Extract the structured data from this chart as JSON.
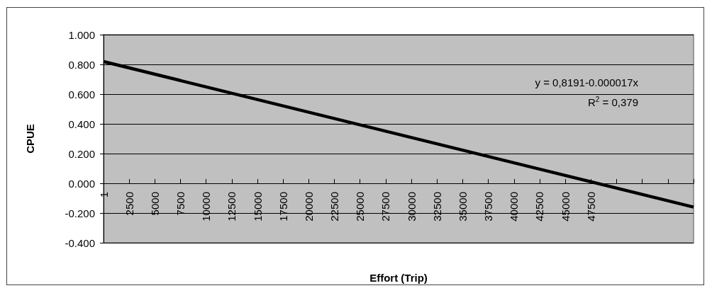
{
  "chart_data": {
    "type": "line",
    "xlabel": "Effort (Trip)",
    "ylabel": "CPUE",
    "x": [
      1,
      57500
    ],
    "series": [
      {
        "color": "#000000",
        "values": [
          0.819,
          -0.16
        ]
      }
    ],
    "xlim": [
      1,
      57500
    ],
    "xticks": [
      1,
      2500,
      5000,
      7500,
      10000,
      12500,
      15000,
      17500,
      20000,
      22500,
      25000,
      27500,
      30000,
      32500,
      35000,
      37500,
      40000,
      42500,
      45000,
      47500,
      {
        "value": 50000,
        "label": null
      },
      {
        "value": 52500,
        "label": null
      },
      {
        "value": 55000,
        "label": null
      },
      {
        "value": 57500,
        "label": null
      }
    ],
    "ylim": [
      -0.4,
      1.0
    ],
    "yticks": [
      {
        "value": -0.4,
        "label": "-0.400"
      },
      {
        "value": -0.2,
        "label": "-0.200"
      },
      {
        "value": 0,
        "label": "0.000"
      },
      {
        "value": 0.2,
        "label": "0.200"
      },
      {
        "value": 0.4,
        "label": "0.400"
      },
      {
        "value": 0.6,
        "label": "0.600"
      },
      {
        "value": 0.8,
        "label": "0.800"
      },
      {
        "value": 1.0,
        "label": "1.000"
      }
    ],
    "annotations": [
      "y = 0,8191-0.000017x",
      "R$^{2}$ = 0,379"
    ],
    "grid": "y",
    "marker": "none",
    "line_style": "solid"
  }
}
